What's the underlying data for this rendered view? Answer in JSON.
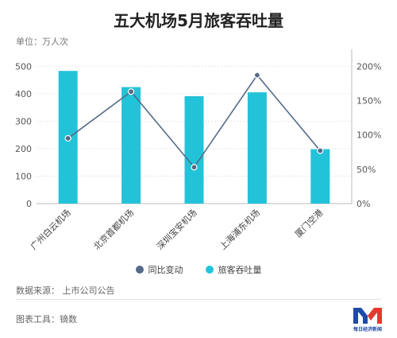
{
  "header": {
    "title": "五大机场5月旅客吞吐量",
    "unit": "单位：万人次"
  },
  "chart_data": {
    "type": "bar",
    "categories": [
      "广州白云机场",
      "北京首都机场",
      "深圳宝安机场",
      "上海浦东机场",
      "厦门空港"
    ],
    "series": [
      {
        "name": "旅客吞吐量",
        "type": "bar",
        "axis": "left",
        "color": "#22c3d8",
        "values": [
          483,
          424,
          391,
          405,
          198
        ]
      },
      {
        "name": "同比变动",
        "type": "line",
        "axis": "right",
        "color": "#536b88",
        "unit": "%",
        "values": [
          95,
          163,
          53,
          187,
          77
        ]
      }
    ],
    "ylim_left": [
      0,
      550
    ],
    "yticks_left": [
      "0",
      "100",
      "200",
      "300",
      "400",
      "500"
    ],
    "ylim_right": [
      0,
      220
    ],
    "yticks_right": [
      "0%",
      "50%",
      "100%",
      "150%",
      "200%"
    ],
    "grid": true,
    "legend_position": "bottom"
  },
  "footer": {
    "source": "数据来源：  上市公司公告",
    "tool": "图表工具：镝数"
  },
  "logo": {
    "text": "每日经济新闻",
    "colors": [
      "#1f4aa8",
      "#e23a2e"
    ]
  }
}
